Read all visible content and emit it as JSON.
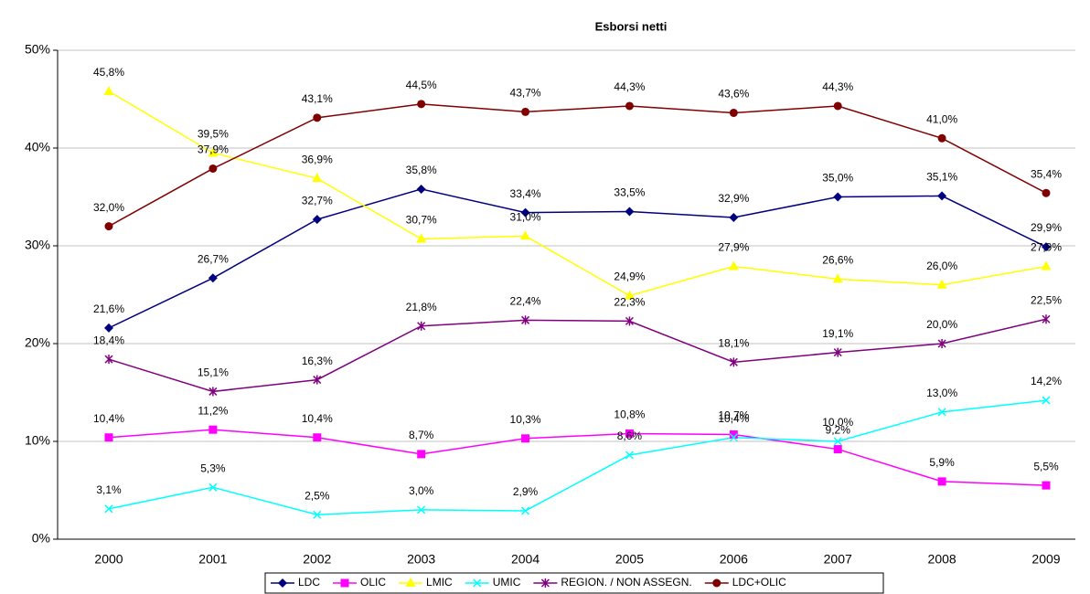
{
  "chart_data": {
    "type": "line",
    "title": "Esborsi netti",
    "categories": [
      "2000",
      "2001",
      "2002",
      "2003",
      "2004",
      "2005",
      "2006",
      "2007",
      "2008",
      "2009"
    ],
    "ylim": [
      0,
      50
    ],
    "yticks": [
      {
        "value": 0,
        "label": "0%"
      },
      {
        "value": 10,
        "label": "10%"
      },
      {
        "value": 20,
        "label": "20%"
      },
      {
        "value": 30,
        "label": "30%"
      },
      {
        "value": 40,
        "label": "40%"
      },
      {
        "value": 50,
        "label": "50%"
      }
    ],
    "grid": true,
    "legend": "bottom",
    "series": [
      {
        "name": "LDC",
        "color": "#000080",
        "marker": "diamond",
        "values": [
          21.6,
          26.7,
          32.7,
          35.8,
          33.4,
          33.5,
          32.9,
          35.0,
          35.1,
          29.9
        ],
        "value_labels": [
          "21,6%",
          "26,7%",
          "32,7%",
          "35,8%",
          "33,4%",
          "33,5%",
          "32,9%",
          "35,0%",
          "35,1%",
          "29,9%"
        ]
      },
      {
        "name": "OLIC",
        "color": "#FF00FF",
        "marker": "square",
        "values": [
          10.4,
          11.2,
          10.4,
          8.7,
          10.3,
          10.8,
          10.7,
          9.2,
          5.9,
          5.5
        ],
        "value_labels": [
          "10,4%",
          "11,2%",
          "10,4%",
          "8,7%",
          "10,3%",
          "10,8%",
          "10,7%",
          "9,2%",
          "5,9%",
          "5,5%"
        ]
      },
      {
        "name": "LMIC",
        "color": "#FFFF00",
        "marker": "triangle",
        "values": [
          45.8,
          39.5,
          36.9,
          30.7,
          31.0,
          24.9,
          27.9,
          26.6,
          26.0,
          27.9
        ],
        "value_labels": [
          "45,8%",
          "39,5%",
          "36,9%",
          "30,7%",
          "31,0%",
          "24,9%",
          "27,9%",
          "26,6%",
          "26,0%",
          "27,9%"
        ]
      },
      {
        "name": "UMIC",
        "color": "#00FFFF",
        "marker": "x",
        "values": [
          3.1,
          5.3,
          2.5,
          3.0,
          2.9,
          8.6,
          10.4,
          10.0,
          13.0,
          14.2
        ],
        "value_labels": [
          "3,1%",
          "5,3%",
          "2,5%",
          "3,0%",
          "2,9%",
          "8,6%",
          "10,4%",
          "10,0%",
          "13,0%",
          "14,2%"
        ]
      },
      {
        "name": "REGION. / NON ASSEGN.",
        "color": "#800080",
        "marker": "star",
        "values": [
          18.4,
          15.1,
          16.3,
          21.8,
          22.4,
          22.3,
          18.1,
          19.1,
          20.0,
          22.5
        ],
        "value_labels": [
          "18,4%",
          "15,1%",
          "16,3%",
          "21,8%",
          "22,4%",
          "22,3%",
          "18,1%",
          "19,1%",
          "20,0%",
          "22,5%"
        ]
      },
      {
        "name": "LDC+OLIC",
        "color": "#800000",
        "marker": "circle",
        "values": [
          32.0,
          37.9,
          43.1,
          44.5,
          43.7,
          44.3,
          43.6,
          44.3,
          41.0,
          35.4
        ],
        "value_labels": [
          "32,0%",
          "37,9%",
          "43,1%",
          "44,5%",
          "43,7%",
          "44,3%",
          "43,6%",
          "44,3%",
          "41,0%",
          "35,4%"
        ]
      }
    ]
  }
}
